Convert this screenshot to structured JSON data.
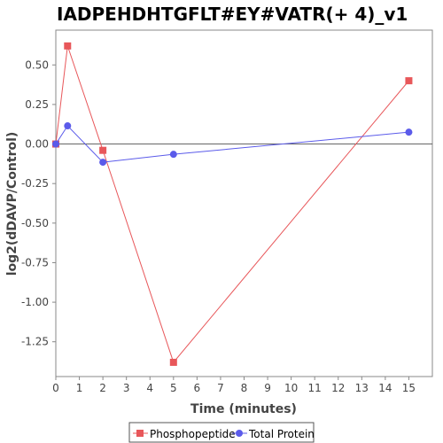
{
  "chart_data": {
    "type": "line",
    "title": "IADPEHDHTGFLT#EY#VATR(+ 4)_v1",
    "xlabel": "Time (minutes)",
    "ylabel": "log2(dDAVP/Control)",
    "xlim": [
      0,
      16
    ],
    "ylim": [
      -1.47,
      0.72
    ],
    "x_ticks": [
      0,
      1,
      2,
      3,
      4,
      5,
      6,
      7,
      8,
      9,
      10,
      11,
      12,
      13,
      14,
      15
    ],
    "y_ticks": [
      0.5,
      0.25,
      0.0,
      -0.25,
      -0.5,
      -0.75,
      -1.0,
      -1.25
    ],
    "y_tick_labels": [
      "0.50",
      "0.25",
      "0.00",
      "-0.25",
      "-0.50",
      "-0.75",
      "-1.00",
      "-1.25"
    ],
    "grid": false,
    "legend_position": "bottom",
    "series": [
      {
        "name": "Phosphopeptide",
        "marker": "square",
        "color": "#e8575a",
        "x": [
          0,
          0.5,
          2,
          5,
          15
        ],
        "y": [
          0.0,
          0.62,
          -0.04,
          -1.38,
          0.4
        ]
      },
      {
        "name": "Total Protein",
        "marker": "circle",
        "color": "#5b5bea",
        "x": [
          0,
          0.5,
          2,
          5,
          15
        ],
        "y": [
          0.0,
          0.115,
          -0.115,
          -0.065,
          0.075
        ]
      }
    ]
  }
}
